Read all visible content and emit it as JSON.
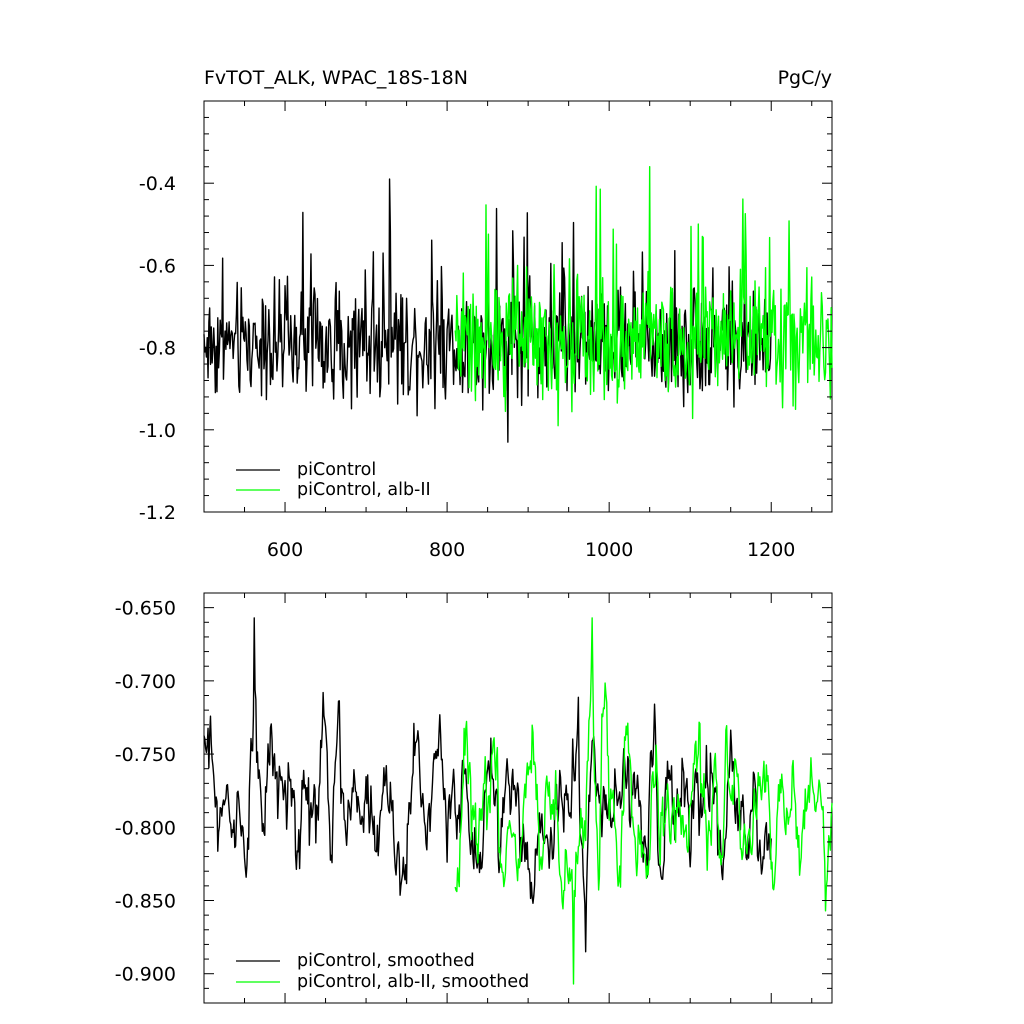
{
  "chart_data": [
    {
      "type": "line",
      "title": "FvTOT_ALK, WPAC_18S-18N",
      "units": "PgC/y",
      "xlim": [
        500,
        1275
      ],
      "ylim": [
        -1.2,
        -0.2
      ],
      "x_ticks": [
        600,
        800,
        1000,
        1200
      ],
      "x_tick_labels": [
        "600",
        "800",
        "1000",
        "1200"
      ],
      "y_ticks": [
        -1.2,
        -1.0,
        -0.8,
        -0.6,
        -0.4
      ],
      "y_tick_labels": [
        "-1.2",
        "-1.0",
        "-0.8",
        "-0.6",
        "-0.4"
      ],
      "legend": [
        "piControl",
        "piControl, alb-II"
      ],
      "legend_position": "bottom-left",
      "series": [
        {
          "name": "piControl",
          "color": "#000000",
          "x_range": [
            500,
            1200
          ],
          "mean": -0.79,
          "amplitude": 0.11,
          "max": -0.39,
          "min": -1.03
        },
        {
          "name": "piControl, alb-II",
          "color": "#00ff00",
          "x_range": [
            810,
            1275
          ],
          "mean": -0.79,
          "amplitude": 0.12,
          "max": -0.36,
          "min": -0.99
        }
      ]
    },
    {
      "type": "line",
      "xlim": [
        500,
        1275
      ],
      "ylim": [
        -0.92,
        -0.64
      ],
      "x_ticks": [
        600,
        800,
        1000,
        1200
      ],
      "y_ticks": [
        -0.9,
        -0.85,
        -0.8,
        -0.75,
        -0.7,
        -0.65
      ],
      "y_tick_labels": [
        "-0.900",
        "-0.850",
        "-0.800",
        "-0.750",
        "-0.700",
        "-0.650"
      ],
      "legend": [
        "piControl, smoothed",
        "piControl, alb-II, smoothed"
      ],
      "legend_position": "bottom-left",
      "series": [
        {
          "name": "piControl, smoothed",
          "color": "#000000",
          "x_range": [
            500,
            1200
          ],
          "mean": -0.785,
          "amplitude": 0.045,
          "max": -0.657,
          "min": -0.885
        },
        {
          "name": "piControl, alb-II, smoothed",
          "color": "#00ff00",
          "x_range": [
            810,
            1275
          ],
          "mean": -0.79,
          "amplitude": 0.05,
          "max": -0.657,
          "min": -0.907
        }
      ]
    }
  ]
}
